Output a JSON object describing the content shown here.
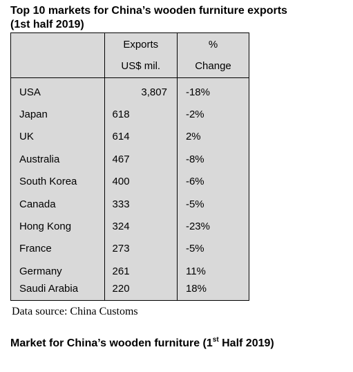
{
  "title_line1": "Top 10 markets for China’s wooden furniture exports",
  "title_line2": "(1st half 2019)",
  "table": {
    "headers": {
      "market": "",
      "exports_line1": "Exports",
      "exports_line2": "US$ mil.",
      "change_line1": "%",
      "change_line2": "Change"
    },
    "rows": [
      {
        "market": "USA",
        "exports": "3,807",
        "change": "-18%"
      },
      {
        "market": "Japan",
        "exports": "618",
        "change": "-2%"
      },
      {
        "market": "UK",
        "exports": "614",
        "change": "2%"
      },
      {
        "market": "Australia",
        "exports": "467",
        "change": "-8%"
      },
      {
        "market": "South Korea",
        "exports": "400",
        "change": "-6%"
      },
      {
        "market": "Canada",
        "exports": "333",
        "change": "-5%"
      },
      {
        "market": "Hong Kong",
        "exports": "324",
        "change": "-23%"
      },
      {
        "market": "France",
        "exports": "273",
        "change": "-5%"
      },
      {
        "market": "Germany",
        "exports": "261",
        "change": "11%"
      },
      {
        "market": "Saudi Arabia",
        "exports": "220",
        "change": "18%"
      }
    ]
  },
  "source": "Data source: China Customs",
  "subtitle": {
    "before": "Market for China’s wooden furniture (1",
    "sup": "st",
    "after": " Half 2019)"
  }
}
